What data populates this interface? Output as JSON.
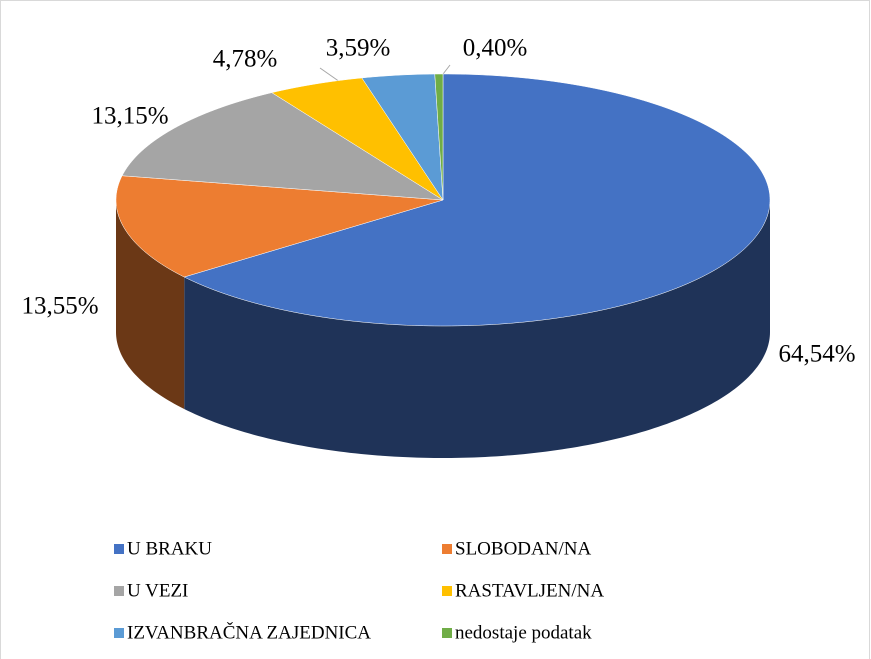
{
  "chart_data": {
    "type": "pie",
    "categories": [
      "U BRAKU",
      "SLOBODAN/NA",
      "U VEZI",
      "RASTAVLJEN/NA",
      "IZVANBRAČNA ZAJEDNICA",
      "nedostaje podatak"
    ],
    "values": [
      64.54,
      13.55,
      13.15,
      4.78,
      3.59,
      0.4
    ],
    "value_labels": [
      "64,54%",
      "13,55%",
      "13,15%",
      "4,78%",
      "3,59%",
      "0,40%"
    ],
    "colors": [
      "#4472c4",
      "#ed7d31",
      "#a5a5a5",
      "#ffc000",
      "#5b9bd5",
      "#70ad47"
    ]
  }
}
